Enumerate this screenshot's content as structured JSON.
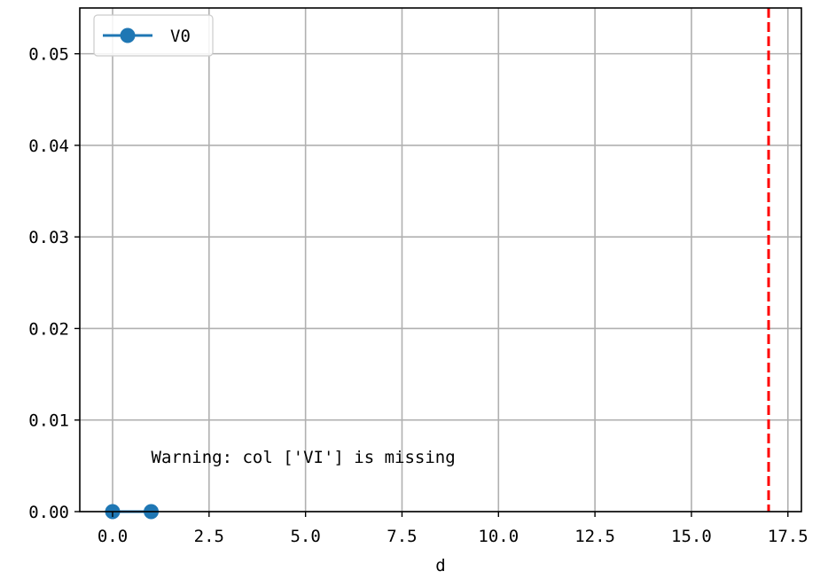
{
  "chart_data": {
    "type": "line",
    "xlabel": "d",
    "ylabel": "",
    "title": "",
    "xlim": [
      -0.85,
      17.85
    ],
    "ylim": [
      0,
      0.055
    ],
    "x_ticks": [
      0.0,
      2.5,
      5.0,
      7.5,
      10.0,
      12.5,
      15.0,
      17.5
    ],
    "x_tick_labels": [
      "0.0",
      "2.5",
      "5.0",
      "7.5",
      "10.0",
      "12.5",
      "15.0",
      "17.5"
    ],
    "y_ticks": [
      0.0,
      0.01,
      0.02,
      0.03,
      0.04,
      0.05
    ],
    "y_tick_labels": [
      "0.00",
      "0.01",
      "0.02",
      "0.03",
      "0.04",
      "0.05"
    ],
    "grid": true,
    "legend_position": "top-left",
    "series": [
      {
        "name": "V0",
        "color": "#1f77b4",
        "marker": "circle",
        "x": [
          0,
          1
        ],
        "y": [
          0.0,
          0.0
        ]
      }
    ],
    "vlines": [
      {
        "x": 17,
        "color": "#ff0000",
        "style": "dashed"
      }
    ],
    "annotations": [
      {
        "text": "Warning: col ['VI'] is missing",
        "x": 1.0,
        "y": 0.006
      }
    ]
  }
}
